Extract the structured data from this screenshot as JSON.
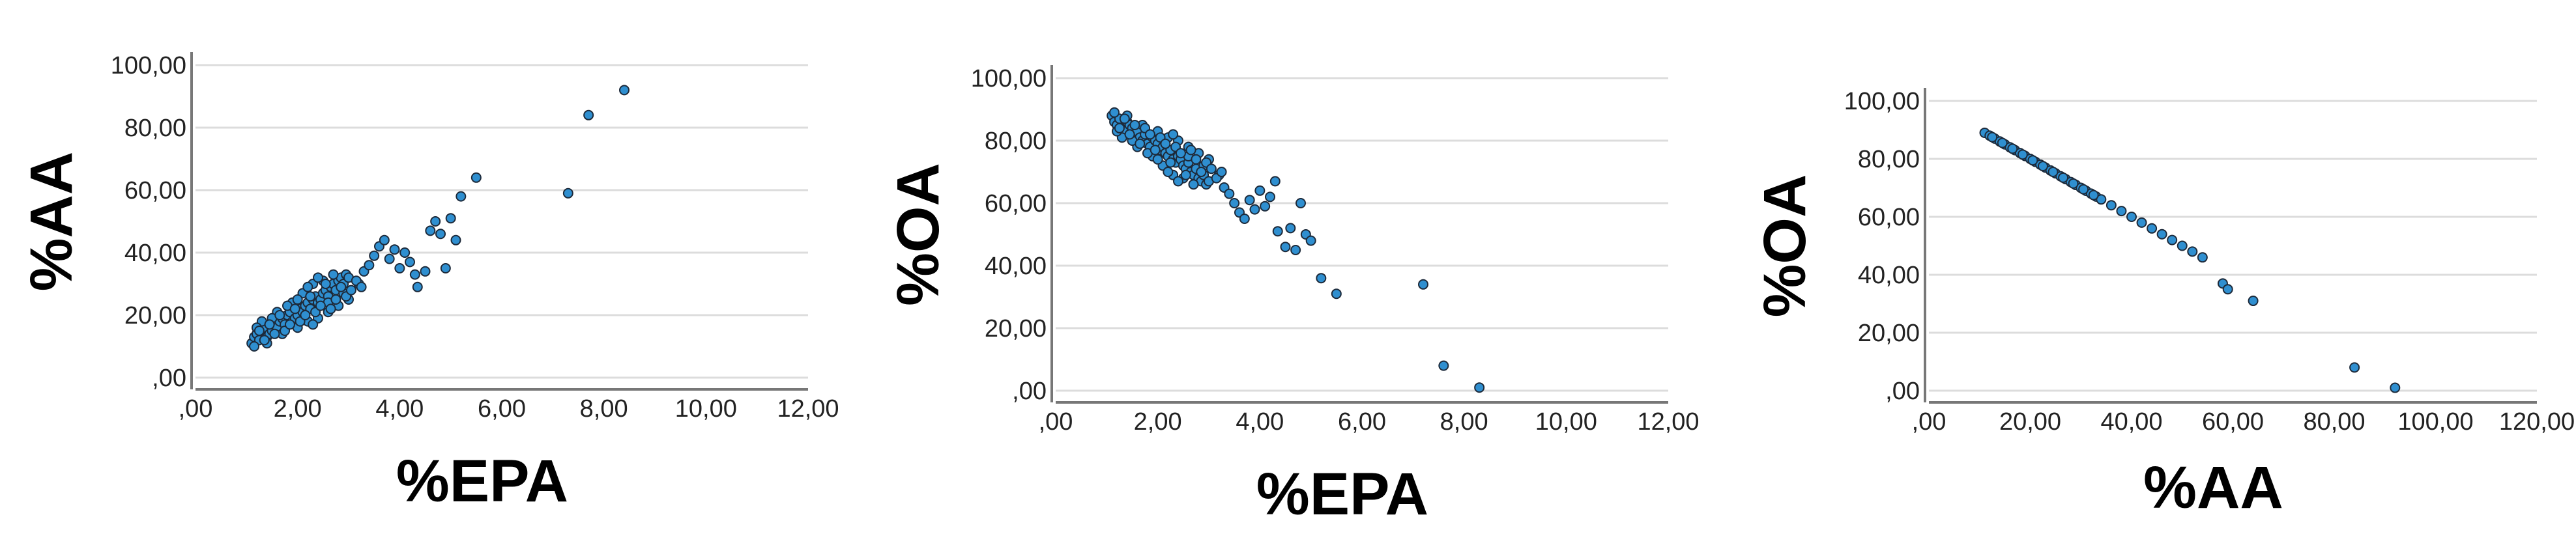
{
  "figure": {
    "point_color": "#2f8fd0",
    "point_edge_color": "#1d2a3a"
  },
  "chart_data": [
    {
      "type": "scatter",
      "title": "",
      "xlabel": "%EPA",
      "ylabel": "%AA",
      "xlim": [
        0,
        12
      ],
      "ylim": [
        0,
        100
      ],
      "x_ticks": [
        ",00",
        "2,00",
        "4,00",
        "6,00",
        "8,00",
        "10,00",
        "12,00"
      ],
      "y_ticks": [
        ",00",
        "20,00",
        "40,00",
        "60,00",
        "80,00",
        "100,00"
      ],
      "grid": "horizontal",
      "series": [
        {
          "points": [
            [
              1.1,
              11
            ],
            [
              1.15,
              13
            ],
            [
              1.2,
              14
            ],
            [
              1.25,
              12
            ],
            [
              1.3,
              15
            ],
            [
              1.35,
              16
            ],
            [
              1.4,
              13
            ],
            [
              1.45,
              14
            ],
            [
              1.5,
              15
            ],
            [
              1.55,
              17
            ],
            [
              1.6,
              16
            ],
            [
              1.65,
              18
            ],
            [
              1.7,
              19
            ],
            [
              1.75,
              17
            ],
            [
              1.8,
              20
            ],
            [
              1.85,
              21
            ],
            [
              1.9,
              18
            ],
            [
              1.95,
              19
            ],
            [
              2.0,
              20
            ],
            [
              2.05,
              22
            ],
            [
              2.1,
              21
            ],
            [
              2.15,
              23
            ],
            [
              2.2,
              24
            ],
            [
              2.25,
              22
            ],
            [
              2.3,
              25
            ],
            [
              2.35,
              26
            ],
            [
              2.4,
              24
            ],
            [
              2.45,
              25
            ],
            [
              2.5,
              27
            ],
            [
              2.55,
              28
            ],
            [
              2.6,
              26
            ],
            [
              2.65,
              29
            ],
            [
              2.7,
              30
            ],
            [
              2.75,
              28
            ],
            [
              2.8,
              31
            ],
            [
              2.85,
              32
            ],
            [
              2.9,
              30
            ],
            [
              2.95,
              33
            ],
            [
              3.0,
              32
            ],
            [
              1.3,
              18
            ],
            [
              1.6,
              21
            ],
            [
              1.9,
              24
            ],
            [
              2.1,
              27
            ],
            [
              2.3,
              30
            ],
            [
              2.5,
              31
            ],
            [
              2.7,
              33
            ],
            [
              1.4,
              11
            ],
            [
              1.7,
              14
            ],
            [
              2.0,
              16
            ],
            [
              2.2,
              18
            ],
            [
              2.4,
              19
            ],
            [
              2.6,
              21
            ],
            [
              2.8,
              23
            ],
            [
              3.0,
              25
            ],
            [
              1.2,
              16
            ],
            [
              1.5,
              19
            ],
            [
              1.8,
              23
            ],
            [
              2.0,
              25
            ],
            [
              2.2,
              29
            ],
            [
              2.4,
              32
            ],
            [
              2.6,
              24
            ],
            [
              2.9,
              27
            ],
            [
              3.2,
              30
            ],
            [
              3.3,
              34
            ],
            [
              3.4,
              36
            ],
            [
              3.5,
              39
            ],
            [
              3.6,
              42
            ],
            [
              3.7,
              44
            ],
            [
              3.8,
              38
            ],
            [
              3.9,
              41
            ],
            [
              4.0,
              35
            ],
            [
              4.1,
              40
            ],
            [
              4.2,
              37
            ],
            [
              4.3,
              33
            ],
            [
              4.35,
              29
            ],
            [
              4.5,
              34
            ],
            [
              4.6,
              47
            ],
            [
              4.7,
              50
            ],
            [
              4.8,
              46
            ],
            [
              4.9,
              35
            ],
            [
              5.0,
              51
            ],
            [
              5.1,
              44
            ],
            [
              5.2,
              58
            ],
            [
              5.5,
              64
            ],
            [
              7.3,
              59
            ],
            [
              7.7,
              84
            ],
            [
              8.4,
              92
            ],
            [
              1.15,
              10
            ],
            [
              1.25,
              15
            ],
            [
              1.35,
              12
            ],
            [
              1.45,
              17
            ],
            [
              1.55,
              14
            ],
            [
              1.65,
              20
            ],
            [
              1.75,
              15
            ],
            [
              1.85,
              17
            ],
            [
              1.95,
              22
            ],
            [
              2.05,
              18
            ],
            [
              2.15,
              20
            ],
            [
              2.25,
              26
            ],
            [
              2.35,
              21
            ],
            [
              2.45,
              23
            ],
            [
              2.55,
              30
            ],
            [
              2.65,
              22
            ],
            [
              2.75,
              25
            ],
            [
              2.85,
              29
            ],
            [
              2.95,
              26
            ],
            [
              3.05,
              28
            ],
            [
              3.15,
              31
            ],
            [
              3.25,
              29
            ],
            [
              2.3,
              17
            ]
          ]
        }
      ]
    },
    {
      "type": "scatter",
      "title": "",
      "xlabel": "%EPA",
      "ylabel": "%OA",
      "xlim": [
        0,
        12
      ],
      "ylim": [
        0,
        100
      ],
      "x_ticks": [
        ",00",
        "2,00",
        "4,00",
        "6,00",
        "8,00",
        "10,00",
        "12,00"
      ],
      "y_ticks": [
        ",00",
        "20,00",
        "40,00",
        "60,00",
        "80,00",
        "100,00"
      ],
      "grid": "horizontal",
      "series": [
        {
          "points": [
            [
              1.1,
              88
            ],
            [
              1.15,
              86
            ],
            [
              1.2,
              85
            ],
            [
              1.25,
              87
            ],
            [
              1.3,
              84
            ],
            [
              1.35,
              83
            ],
            [
              1.4,
              86
            ],
            [
              1.45,
              85
            ],
            [
              1.5,
              84
            ],
            [
              1.55,
              82
            ],
            [
              1.6,
              83
            ],
            [
              1.65,
              81
            ],
            [
              1.7,
              80
            ],
            [
              1.75,
              82
            ],
            [
              1.8,
              79
            ],
            [
              1.85,
              78
            ],
            [
              1.9,
              81
            ],
            [
              1.95,
              80
            ],
            [
              2.0,
              79
            ],
            [
              2.05,
              77
            ],
            [
              2.1,
              78
            ],
            [
              2.15,
              76
            ],
            [
              2.2,
              75
            ],
            [
              2.25,
              77
            ],
            [
              2.3,
              74
            ],
            [
              2.35,
              73
            ],
            [
              2.4,
              75
            ],
            [
              2.45,
              74
            ],
            [
              2.5,
              72
            ],
            [
              2.55,
              71
            ],
            [
              2.6,
              73
            ],
            [
              2.65,
              70
            ],
            [
              2.7,
              69
            ],
            [
              2.75,
              71
            ],
            [
              2.8,
              68
            ],
            [
              2.85,
              67
            ],
            [
              2.9,
              69
            ],
            [
              2.95,
              66
            ],
            [
              3.0,
              67
            ],
            [
              1.3,
              81
            ],
            [
              1.6,
              78
            ],
            [
              1.9,
              75
            ],
            [
              2.1,
              72
            ],
            [
              2.3,
              69
            ],
            [
              2.5,
              68
            ],
            [
              2.7,
              66
            ],
            [
              1.4,
              88
            ],
            [
              1.7,
              85
            ],
            [
              2.0,
              83
            ],
            [
              2.2,
              81
            ],
            [
              2.4,
              80
            ],
            [
              2.6,
              78
            ],
            [
              2.8,
              76
            ],
            [
              3.0,
              74
            ],
            [
              1.2,
              83
            ],
            [
              1.5,
              80
            ],
            [
              1.8,
              76
            ],
            [
              2.0,
              74
            ],
            [
              2.2,
              70
            ],
            [
              2.4,
              67
            ],
            [
              2.6,
              75
            ],
            [
              2.9,
              72
            ],
            [
              3.2,
              69
            ],
            [
              3.3,
              65
            ],
            [
              3.4,
              63
            ],
            [
              3.5,
              60
            ],
            [
              3.6,
              57
            ],
            [
              3.7,
              55
            ],
            [
              3.8,
              61
            ],
            [
              3.9,
              58
            ],
            [
              4.0,
              64
            ],
            [
              4.1,
              59
            ],
            [
              4.2,
              62
            ],
            [
              4.3,
              67
            ],
            [
              4.35,
              51
            ],
            [
              4.5,
              46
            ],
            [
              4.6,
              52
            ],
            [
              4.7,
              45
            ],
            [
              4.8,
              60
            ],
            [
              4.9,
              50
            ],
            [
              5.0,
              48
            ],
            [
              5.2,
              36
            ],
            [
              5.5,
              31
            ],
            [
              7.2,
              34
            ],
            [
              7.6,
              8
            ],
            [
              8.3,
              1
            ],
            [
              1.15,
              89
            ],
            [
              1.25,
              84
            ],
            [
              1.35,
              87
            ],
            [
              1.45,
              82
            ],
            [
              1.55,
              85
            ],
            [
              1.65,
              79
            ],
            [
              1.75,
              84
            ],
            [
              1.85,
              82
            ],
            [
              1.95,
              77
            ],
            [
              2.05,
              81
            ],
            [
              2.15,
              79
            ],
            [
              2.25,
              73
            ],
            [
              2.35,
              78
            ],
            [
              2.45,
              76
            ],
            [
              2.55,
              69
            ],
            [
              2.65,
              77
            ],
            [
              2.75,
              74
            ],
            [
              2.85,
              70
            ],
            [
              2.95,
              73
            ],
            [
              3.05,
              71
            ],
            [
              3.15,
              68
            ],
            [
              3.25,
              70
            ],
            [
              2.3,
              82
            ]
          ]
        }
      ]
    },
    {
      "type": "scatter",
      "title": "",
      "xlabel": "%AA",
      "ylabel": "%OA",
      "xlim": [
        0,
        120
      ],
      "ylim": [
        0,
        100
      ],
      "x_ticks": [
        ",00",
        "20,00",
        "40,00",
        "60,00",
        "80,00",
        "100,00",
        "120,00"
      ],
      "y_ticks": [
        ",00",
        "20,00",
        "40,00",
        "60,00",
        "80,00",
        "100,00"
      ],
      "grid": "horizontal",
      "series": [
        {
          "points": [
            [
              11,
              89
            ],
            [
              12,
              88
            ],
            [
              13,
              87
            ],
            [
              14,
              86
            ],
            [
              15,
              85
            ],
            [
              16,
              84
            ],
            [
              17,
              83
            ],
            [
              18,
              82
            ],
            [
              19,
              81
            ],
            [
              20,
              80
            ],
            [
              21,
              79
            ],
            [
              22,
              78
            ],
            [
              23,
              77
            ],
            [
              24,
              76
            ],
            [
              25,
              75
            ],
            [
              26,
              74
            ],
            [
              27,
              73
            ],
            [
              28,
              72
            ],
            [
              29,
              71
            ],
            [
              30,
              70
            ],
            [
              31,
              69
            ],
            [
              32,
              68
            ],
            [
              33,
              67
            ],
            [
              34,
              66
            ],
            [
              36,
              64
            ],
            [
              38,
              62
            ],
            [
              40,
              60
            ],
            [
              42,
              58
            ],
            [
              44,
              56
            ],
            [
              46,
              54
            ],
            [
              48,
              52
            ],
            [
              50,
              50
            ],
            [
              52,
              48
            ],
            [
              54,
              46
            ],
            [
              58,
              37
            ],
            [
              59,
              35
            ],
            [
              64,
              31
            ],
            [
              84,
              8
            ],
            [
              92,
              1
            ],
            [
              12.5,
              87.5
            ],
            [
              14.5,
              85.5
            ],
            [
              16.5,
              83.5
            ],
            [
              18.5,
              81.5
            ],
            [
              20.5,
              79.5
            ],
            [
              22.5,
              77.5
            ],
            [
              24.5,
              75.5
            ],
            [
              26.5,
              73.5
            ],
            [
              28.5,
              71.5
            ],
            [
              30.5,
              69.5
            ],
            [
              32.5,
              67.5
            ]
          ]
        }
      ]
    }
  ]
}
